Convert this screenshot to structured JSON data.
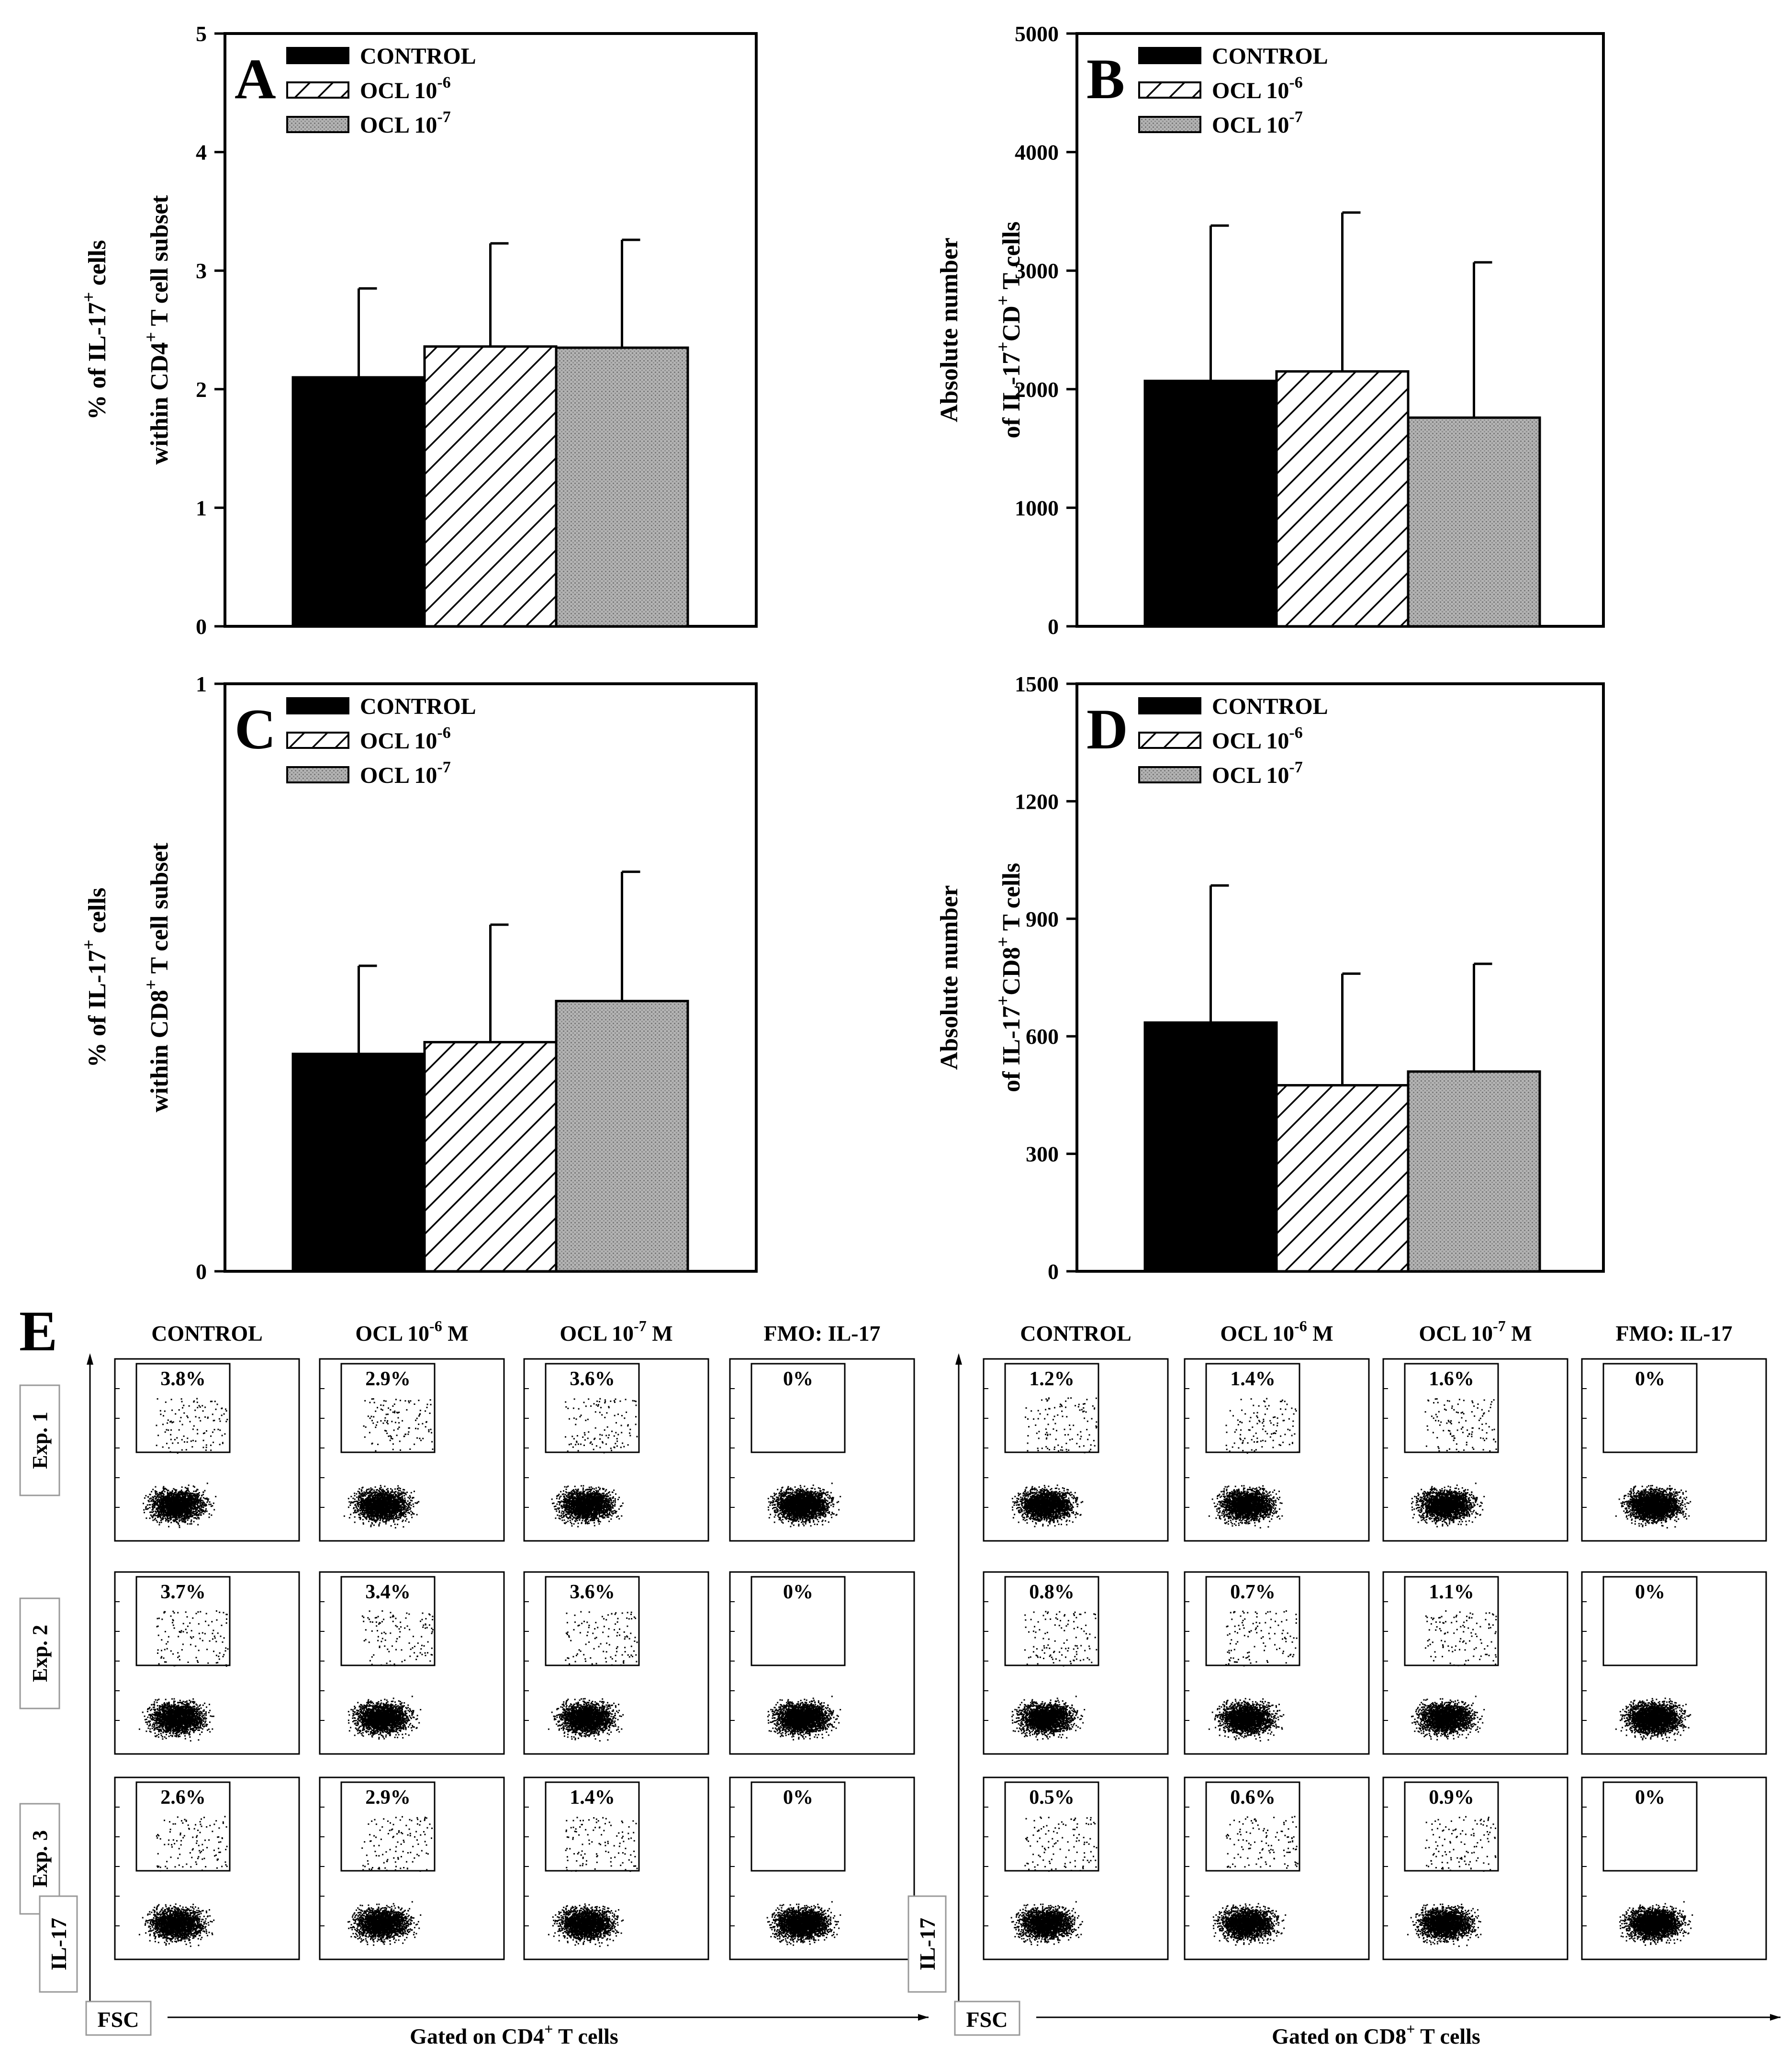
{
  "figure": {
    "legend_labels": [
      "CONTROL",
      "OCL 10",
      "OCL 10"
    ],
    "legend_exponents": [
      "",
      "-6",
      "-7"
    ],
    "series_colors": {
      "control": "#000000",
      "ocl6": "hatch",
      "ocl7": "#b0b0b0"
    }
  },
  "chart_data": [
    {
      "type": "bar",
      "panel_letter": "A",
      "ylabel_line1": "% of IL-17",
      "ylabel_line1_sup": "+",
      "ylabel_line1_tail": " cells",
      "ylabel_line2": "within CD4",
      "ylabel_line2_sup": "+",
      "ylabel_line2_tail": " T cell subset",
      "ylim": [
        0,
        5
      ],
      "yticks": [
        0,
        1,
        2,
        3,
        4,
        5
      ],
      "series": [
        {
          "name": "CONTROL",
          "value": 2.1,
          "error": 0.75
        },
        {
          "name": "OCL 10-6",
          "value": 2.36,
          "error": 0.87
        },
        {
          "name": "OCL 10-7",
          "value": 2.35,
          "error": 0.91
        }
      ]
    },
    {
      "type": "bar",
      "panel_letter": "B",
      "ylabel_line1": "Absolute number",
      "ylabel_line1_sup": "",
      "ylabel_line1_tail": "",
      "ylabel_line2": "of IL-17",
      "ylabel_line2_sup": "+",
      "ylabel_line2_tail": "CD",
      "ylabel_line2_sup2": "+",
      "ylabel_line2_tail2": " T cells",
      "ylim": [
        0,
        5000
      ],
      "yticks": [
        0,
        1000,
        2000,
        3000,
        4000,
        5000
      ],
      "series": [
        {
          "name": "CONTROL",
          "value": 2070,
          "error": 1310
        },
        {
          "name": "OCL 10-6",
          "value": 2150,
          "error": 1340
        },
        {
          "name": "OCL 10-7",
          "value": 1760,
          "error": 1310
        }
      ]
    },
    {
      "type": "bar",
      "panel_letter": "C",
      "ylabel_line1": "% of IL-17",
      "ylabel_line1_sup": "+",
      "ylabel_line1_tail": " cells",
      "ylabel_line2": "within CD8",
      "ylabel_line2_sup": "+",
      "ylabel_line2_tail": " T cell subset",
      "ylim": [
        0,
        1
      ],
      "yticks": [
        0,
        1
      ],
      "series": [
        {
          "name": "CONTROL",
          "value": 0.37,
          "error": 0.15
        },
        {
          "name": "OCL 10-6",
          "value": 0.39,
          "error": 0.2
        },
        {
          "name": "OCL 10-7",
          "value": 0.46,
          "error": 0.22
        }
      ]
    },
    {
      "type": "bar",
      "panel_letter": "D",
      "ylabel_line1": "Absolute number",
      "ylabel_line1_sup": "",
      "ylabel_line1_tail": "",
      "ylabel_line2": "of IL-17",
      "ylabel_line2_sup": "+",
      "ylabel_line2_tail": "CD8",
      "ylabel_line2_sup2": "+",
      "ylabel_line2_tail2": " T cells",
      "ylim": [
        0,
        1500
      ],
      "yticks": [
        0,
        300,
        600,
        900,
        1200,
        1500
      ],
      "series": [
        {
          "name": "CONTROL",
          "value": 635,
          "error": 350
        },
        {
          "name": "OCL 10-6",
          "value": 475,
          "error": 285
        },
        {
          "name": "OCL 10-7",
          "value": 510,
          "error": 275
        }
      ]
    }
  ],
  "flow": {
    "panel_letter": "E",
    "exp_labels": [
      "Exp. 1",
      "Exp. 2",
      "Exp. 3"
    ],
    "left": {
      "columns": [
        {
          "label": "CONTROL",
          "sup": ""
        },
        {
          "label": "OCL 10",
          "sup": "-6",
          "tail": " M"
        },
        {
          "label": "OCL 10",
          "sup": "-7",
          "tail": " M"
        },
        {
          "label": "FMO: IL-17",
          "sup": ""
        }
      ],
      "values": [
        [
          "3.8%",
          "2.9%",
          "3.6%",
          "0%"
        ],
        [
          "3.7%",
          "3.4%",
          "3.6%",
          "0%"
        ],
        [
          "2.6%",
          "2.9%",
          "1.4%",
          "0%"
        ]
      ],
      "yaxis_label": "IL-17",
      "xaxis_label": "FSC",
      "gate_label": "Gated on CD4",
      "gate_sup": "+",
      "gate_tail": " T cells"
    },
    "right": {
      "columns": [
        {
          "label": "CONTROL",
          "sup": ""
        },
        {
          "label": "OCL 10",
          "sup": "-6",
          "tail": " M"
        },
        {
          "label": "OCL 10",
          "sup": "-7",
          "tail": " M"
        },
        {
          "label": "FMO: IL-17",
          "sup": ""
        }
      ],
      "values": [
        [
          "1.2%",
          "1.4%",
          "1.6%",
          "0%"
        ],
        [
          "0.8%",
          "0.7%",
          "1.1%",
          "0%"
        ],
        [
          "0.5%",
          "0.6%",
          "0.9%",
          "0%"
        ]
      ],
      "yaxis_label": "IL-17",
      "xaxis_label": "FSC",
      "gate_label": "Gated on CD8",
      "gate_sup": "+",
      "gate_tail": " T cells"
    }
  }
}
